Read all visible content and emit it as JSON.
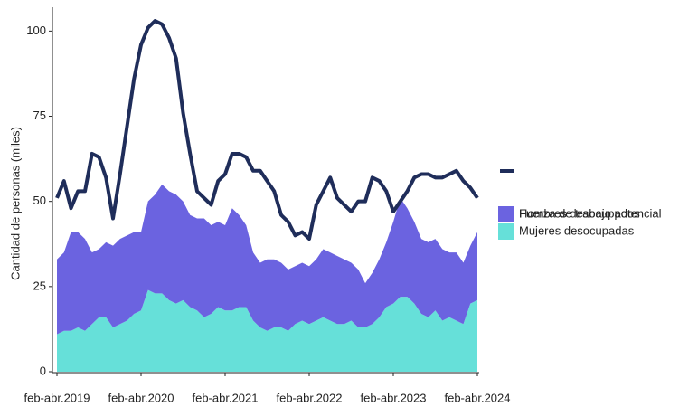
{
  "chart_data": {
    "type": "line-stacked-area",
    "y_label": "Cantidad de personas (miles)",
    "categories": [
      "feb-abr.2019",
      null,
      null,
      null,
      null,
      null,
      null,
      null,
      null,
      null,
      null,
      null,
      "feb-abr.2020",
      null,
      null,
      null,
      null,
      null,
      null,
      null,
      null,
      null,
      null,
      null,
      "feb-abr.2021",
      null,
      null,
      null,
      null,
      null,
      null,
      null,
      null,
      null,
      null,
      null,
      "feb-abr.2022",
      null,
      null,
      null,
      null,
      null,
      null,
      null,
      null,
      null,
      null,
      null,
      "feb-abr.2023",
      null,
      null,
      null,
      null,
      null,
      null,
      null,
      null,
      null,
      null,
      null,
      "feb-abr.2024"
    ],
    "ylim": [
      0,
      107
    ],
    "yticks": [
      0,
      25,
      50,
      75,
      100
    ],
    "grid": false,
    "legend": "right",
    "series": [
      {
        "name": "Fuerza de trabajo potencial",
        "type": "line",
        "color": "#1f2d5a",
        "values": [
          51,
          56,
          48,
          53,
          53,
          64,
          63,
          57,
          45,
          58,
          72,
          86,
          96,
          101,
          103,
          102,
          98,
          92,
          76,
          64,
          53,
          51,
          49,
          56,
          58,
          64,
          64,
          63,
          59,
          59,
          56,
          53,
          46,
          44,
          40,
          41,
          39,
          49,
          53,
          57,
          51,
          49,
          47,
          50,
          50,
          57,
          56,
          53,
          47,
          50,
          53,
          57,
          58,
          58,
          57,
          57,
          58,
          59,
          56,
          54,
          51
        ]
      },
      {
        "name": "Hombres desocupados",
        "type": "area",
        "color": "#6b63e0",
        "values": [
          22,
          23,
          29,
          28,
          27,
          21,
          20,
          22,
          24,
          25,
          25,
          24,
          23,
          26,
          29,
          32,
          32,
          32,
          29,
          27,
          27,
          29,
          26,
          25,
          25,
          30,
          27,
          24,
          20,
          19,
          21,
          20,
          19,
          18,
          17,
          17,
          17,
          18,
          20,
          20,
          20,
          19,
          17,
          17,
          13,
          15,
          17,
          19,
          24,
          29,
          26,
          24,
          22,
          22,
          21,
          21,
          19,
          20,
          18,
          17,
          20
        ]
      },
      {
        "name": "Mujeres desocupadas",
        "type": "area",
        "color": "#66e0d9",
        "values": [
          11,
          12,
          12,
          13,
          12,
          14,
          16,
          16,
          13,
          14,
          15,
          17,
          18,
          24,
          23,
          23,
          21,
          20,
          21,
          19,
          18,
          16,
          17,
          19,
          18,
          18,
          19,
          19,
          15,
          13,
          12,
          13,
          13,
          12,
          14,
          15,
          14,
          15,
          16,
          15,
          14,
          14,
          15,
          13,
          13,
          14,
          16,
          19,
          20,
          22,
          22,
          20,
          17,
          16,
          18,
          15,
          16,
          15,
          14,
          20,
          21
        ]
      }
    ]
  }
}
